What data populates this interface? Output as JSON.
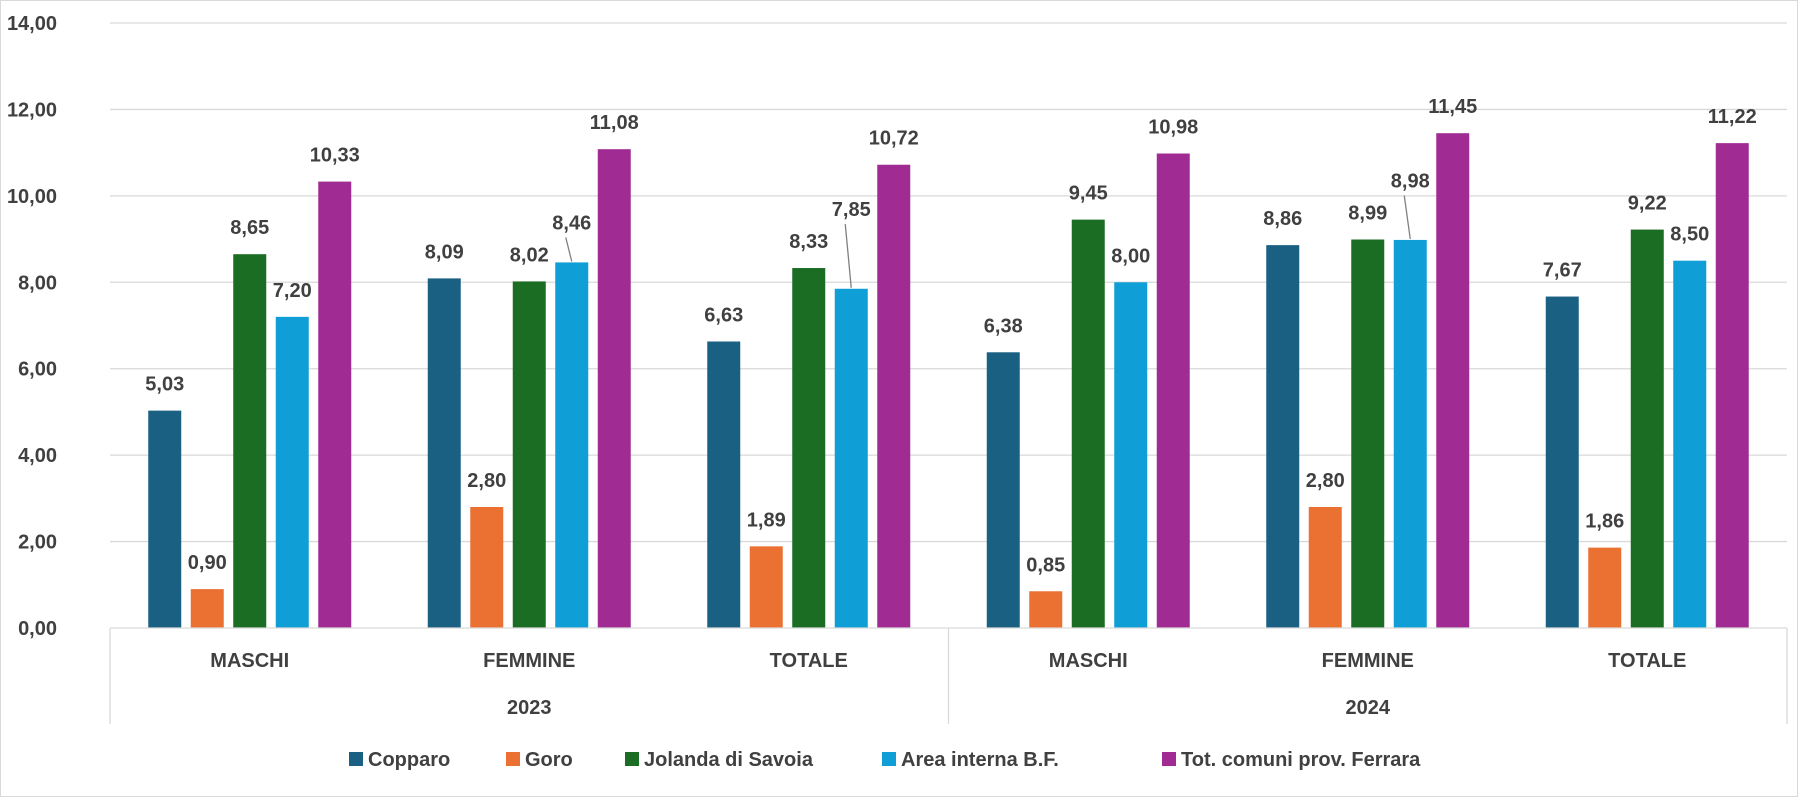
{
  "chart_data": {
    "type": "bar",
    "ylim": [
      0,
      14
    ],
    "y_ticks": [
      "0,00",
      "2,00",
      "4,00",
      "6,00",
      "8,00",
      "10,00",
      "12,00",
      "14,00"
    ],
    "grid": true,
    "legend_position": "bottom",
    "groups": [
      {
        "label": "2023",
        "categories": [
          "MASCHI",
          "FEMMINE",
          "TOTALE"
        ]
      },
      {
        "label": "2024",
        "categories": [
          "MASCHI",
          "FEMMINE",
          "TOTALE"
        ]
      }
    ],
    "series": [
      {
        "name": "Copparo",
        "color": "#1a6082",
        "values": [
          5.03,
          8.09,
          6.63,
          6.38,
          8.86,
          7.67
        ],
        "labels": [
          "5,03",
          "8,09",
          "6,63",
          "6,38",
          "8,86",
          "7,67"
        ]
      },
      {
        "name": "Goro",
        "color": "#ea7132",
        "values": [
          0.9,
          2.8,
          1.89,
          0.85,
          2.8,
          1.86
        ],
        "labels": [
          "0,90",
          "2,80",
          "1,89",
          "0,85",
          "2,80",
          "1,86"
        ]
      },
      {
        "name": "Jolanda di Savoia",
        "color": "#1b6d24",
        "values": [
          8.65,
          8.02,
          8.33,
          9.45,
          8.99,
          9.22
        ],
        "labels": [
          "8,65",
          "8,02",
          "8,33",
          "9,45",
          "8,99",
          "9,22"
        ]
      },
      {
        "name": "Area interna B.F.",
        "color": "#0f9ed5",
        "values": [
          7.2,
          8.46,
          7.85,
          8.0,
          8.98,
          8.5
        ],
        "labels": [
          "7,20",
          "8,46",
          "7,85",
          "8,00",
          "8,98",
          "8,50"
        ]
      },
      {
        "name": "Tot. comuni prov. Ferrara",
        "color": "#a02b93",
        "values": [
          10.33,
          11.08,
          10.72,
          10.98,
          11.45,
          11.22
        ],
        "labels": [
          "10,33",
          "11,08",
          "10,72",
          "10,98",
          "11,45",
          "11,22"
        ]
      }
    ]
  }
}
